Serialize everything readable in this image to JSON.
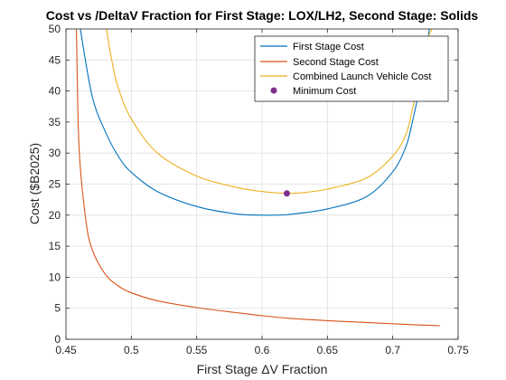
{
  "chart_data": {
    "type": "line",
    "title": "Cost vs /DeltaV Fraction for First Stage: LOX/LH2, Second Stage: Solids",
    "xlabel": "First Stage ΔV Fraction",
    "ylabel": "Cost ($B2025)",
    "xlim": [
      0.45,
      0.75
    ],
    "ylim": [
      0,
      50
    ],
    "x_ticks": [
      "0.45",
      "0.5",
      "0.55",
      "0.6",
      "0.65",
      "0.7",
      "0.75"
    ],
    "y_ticks": [
      "0",
      "5",
      "10",
      "15",
      "20",
      "25",
      "30",
      "35",
      "40",
      "45",
      "50"
    ],
    "grid": true,
    "legend_position": "top-right",
    "series": [
      {
        "name": "First Stage Cost",
        "color": "#0072BD",
        "x": [
          0.461,
          0.47,
          0.48,
          0.49,
          0.5,
          0.52,
          0.55,
          0.58,
          0.6,
          0.605,
          0.62,
          0.65,
          0.68,
          0.7,
          0.71,
          0.715,
          0.72,
          0.725,
          0.728
        ],
        "y": [
          50,
          39.2,
          33.5,
          29.5,
          26.9,
          23.8,
          21.4,
          20.2,
          20.0,
          20.0,
          20.1,
          21.0,
          23.0,
          27.0,
          31.0,
          35.0,
          40.0,
          46.0,
          50.0
        ]
      },
      {
        "name": "Second Stage Cost",
        "color": "#D95319",
        "x": [
          0.458,
          0.46,
          0.465,
          0.47,
          0.48,
          0.49,
          0.5,
          0.52,
          0.55,
          0.58,
          0.6,
          0.62,
          0.65,
          0.68,
          0.7,
          0.72,
          0.736
        ],
        "y": [
          50,
          31,
          19.5,
          14.5,
          10.5,
          8.6,
          7.5,
          6.2,
          5.1,
          4.3,
          3.8,
          3.4,
          3.0,
          2.7,
          2.5,
          2.3,
          2.2
        ]
      },
      {
        "name": "Combined Launch Vehicle Cost",
        "color": "#EDB120",
        "x": [
          0.481,
          0.485,
          0.49,
          0.5,
          0.52,
          0.55,
          0.58,
          0.6,
          0.619,
          0.63,
          0.65,
          0.68,
          0.7,
          0.71,
          0.715,
          0.72,
          0.725,
          0.73
        ],
        "y": [
          50,
          45,
          40.5,
          35.5,
          30.0,
          26.3,
          24.5,
          23.8,
          23.5,
          23.6,
          24.2,
          26.0,
          29.5,
          33.0,
          37.0,
          42.0,
          47.5,
          50.0
        ]
      }
    ],
    "minimum_point": {
      "name": "Minimum Cost",
      "color": "#7E2F8E",
      "x": 0.619,
      "y": 23.5
    }
  }
}
